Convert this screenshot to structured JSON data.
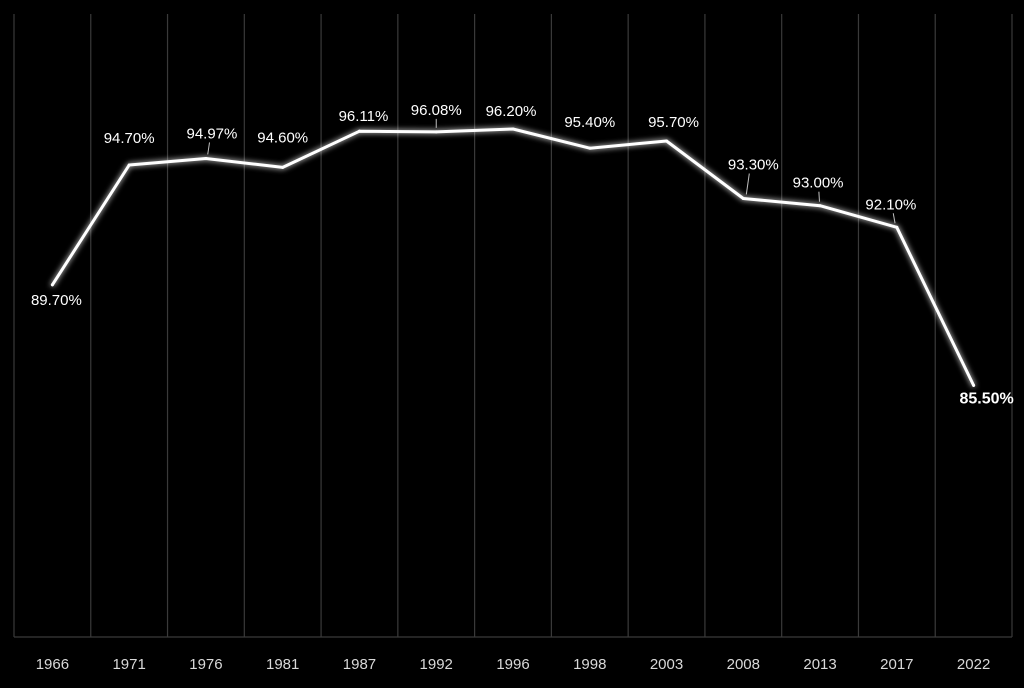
{
  "colors": {
    "background": "#000000",
    "line": "#ffffff",
    "grid": "#3a3a3a",
    "text": "#ffffff",
    "tick_text": "#d9d9d9"
  },
  "chart_data": {
    "type": "line",
    "title": "",
    "xlabel": "",
    "ylabel": "",
    "grid": "vertical",
    "legend": "none",
    "categories": [
      "1966",
      "1971",
      "1976",
      "1981",
      "1987",
      "1992",
      "1996",
      "1998",
      "2003",
      "2008",
      "2013",
      "2017",
      "2022"
    ],
    "values": [
      89.7,
      94.7,
      94.97,
      94.6,
      96.11,
      96.08,
      96.2,
      95.4,
      95.7,
      93.3,
      93.0,
      92.1,
      85.5
    ],
    "data_labels": [
      "89.70%",
      "94.70%",
      "94.97%",
      "94.60%",
      "96.11%",
      "96.08%",
      "96.20%",
      "95.40%",
      "95.70%",
      "93.30%",
      "93.00%",
      "92.10%",
      "85.50%"
    ],
    "ylim": [
      75,
      101
    ]
  }
}
